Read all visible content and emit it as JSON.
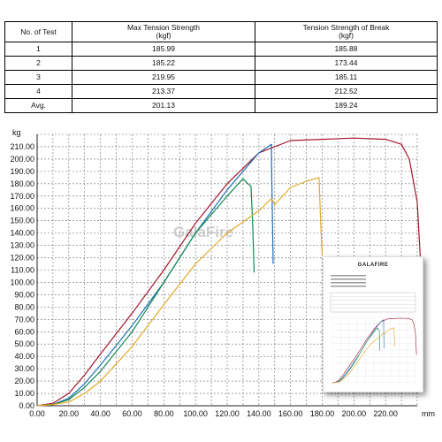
{
  "table": {
    "headers": [
      "No. of Test",
      "Max Tension Strength\n(kgf)",
      "Tension Strength of Break\n(kgf)"
    ],
    "rows": [
      [
        "1",
        "185.99",
        "185.88"
      ],
      [
        "2",
        "185.22",
        "173.44"
      ],
      [
        "3",
        "219.95",
        "185.11"
      ],
      [
        "4",
        "213.37",
        "212.52"
      ],
      [
        "Avg.",
        "201.13",
        "189.24"
      ]
    ]
  },
  "watermark": "GalaFire",
  "inset_logo": "GALAFIRE",
  "colors": {
    "grid": "#6f6f6f",
    "red": "#a3162d",
    "blue": "#1f6fb6",
    "green": "#118a55",
    "yellow": "#e2aa28"
  },
  "chart_data": {
    "type": "line",
    "ylabel": "kg",
    "xlabel": "mm",
    "xlim": [
      0,
      240
    ],
    "ylim": [
      0,
      220
    ],
    "x_ticks": [
      "0.00",
      "20.00",
      "40.00",
      "60.00",
      "80.00",
      "100.00",
      "120.00",
      "140.00",
      "160.00",
      "180.00",
      "200.00",
      "220.00"
    ],
    "y_ticks": [
      "0.00",
      "10.00",
      "20.00",
      "30.00",
      "40.00",
      "50.00",
      "60.00",
      "70.00",
      "80.00",
      "90.00",
      "100.00",
      "110.00",
      "120.00",
      "130.00",
      "140.00",
      "150.00",
      "160.00",
      "170.00",
      "180.00",
      "190.00",
      "200.00",
      "210.00"
    ],
    "grid": true,
    "series": [
      {
        "color": "red",
        "points": [
          [
            0,
            0
          ],
          [
            10,
            2
          ],
          [
            20,
            10
          ],
          [
            30,
            25
          ],
          [
            40,
            42
          ],
          [
            60,
            75
          ],
          [
            80,
            110
          ],
          [
            100,
            148
          ],
          [
            120,
            180
          ],
          [
            140,
            205
          ],
          [
            160,
            215
          ],
          [
            180,
            216
          ],
          [
            200,
            217
          ],
          [
            220,
            216
          ],
          [
            230,
            212
          ],
          [
            235,
            200
          ],
          [
            240,
            165
          ],
          [
            243,
            95
          ]
        ]
      },
      {
        "color": "blue",
        "points": [
          [
            0,
            0
          ],
          [
            10,
            1
          ],
          [
            20,
            6
          ],
          [
            30,
            18
          ],
          [
            40,
            33
          ],
          [
            60,
            65
          ],
          [
            80,
            100
          ],
          [
            100,
            140
          ],
          [
            120,
            175
          ],
          [
            140,
            205
          ],
          [
            148,
            212
          ],
          [
            148,
            196
          ],
          [
            149,
            115
          ]
        ]
      },
      {
        "color": "green",
        "points": [
          [
            0,
            0
          ],
          [
            10,
            1
          ],
          [
            20,
            5
          ],
          [
            30,
            15
          ],
          [
            40,
            28
          ],
          [
            60,
            60
          ],
          [
            80,
            100
          ],
          [
            100,
            140
          ],
          [
            120,
            170
          ],
          [
            130,
            184
          ],
          [
            133,
            180
          ],
          [
            135,
            178
          ],
          [
            136,
            150
          ],
          [
            137,
            108
          ]
        ]
      },
      {
        "color": "yellow",
        "points": [
          [
            0,
            0
          ],
          [
            10,
            1
          ],
          [
            20,
            3
          ],
          [
            30,
            10
          ],
          [
            40,
            20
          ],
          [
            60,
            48
          ],
          [
            80,
            82
          ],
          [
            100,
            115
          ],
          [
            120,
            140
          ],
          [
            140,
            158
          ],
          [
            148,
            168
          ],
          [
            150,
            163
          ],
          [
            160,
            177
          ],
          [
            170,
            182
          ],
          [
            178,
            185
          ],
          [
            179,
            150
          ],
          [
            180,
            122
          ]
        ]
      }
    ]
  }
}
